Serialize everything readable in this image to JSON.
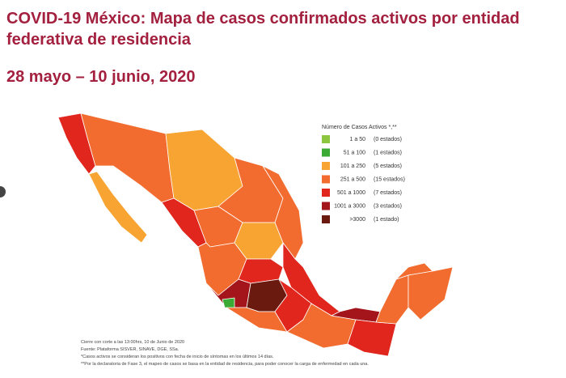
{
  "header": {
    "title": "COVID-19 México: Mapa de casos confirmados activos por entidad federativa de residencia",
    "subtitle": "28 mayo – 10 junio, 2020"
  },
  "legend": {
    "title": "Número de Casos Activos *,**",
    "items": [
      {
        "range": "1 a 50",
        "count": "(0 estados)",
        "color": "#8cc63f"
      },
      {
        "range": "51 a 100",
        "count": "(1 estados)",
        "color": "#3aaa35"
      },
      {
        "range": "101 a 250",
        "count": "(5 estados)",
        "color": "#f8a433"
      },
      {
        "range": "251 a 500",
        "count": "(15 estados)",
        "color": "#f26c2f"
      },
      {
        "range": "501 a 1000",
        "count": "(7 estados)",
        "color": "#e0261d"
      },
      {
        "range": "1001 a 3000",
        "count": "(3 estados)",
        "color": "#a3141b"
      },
      {
        "range": ">3000",
        "count": "(1 estado)",
        "color": "#6b1a10"
      }
    ]
  },
  "footnotes": [
    "Cierre con corte a las 13:00hrs, 10 de Junio de 2020",
    "Fuente: Plataforma SISVER, SINAVE, DGE, SSa.",
    "*Casos activos se consideran los positivos con fecha de inicio de síntomas en los últimos 14 días.",
    "**Por la declaratoria de Fase 3, el mapeo de casos se basa en la entidad de residencia, para poder conocer la carga de enfermedad en cada una."
  ]
}
